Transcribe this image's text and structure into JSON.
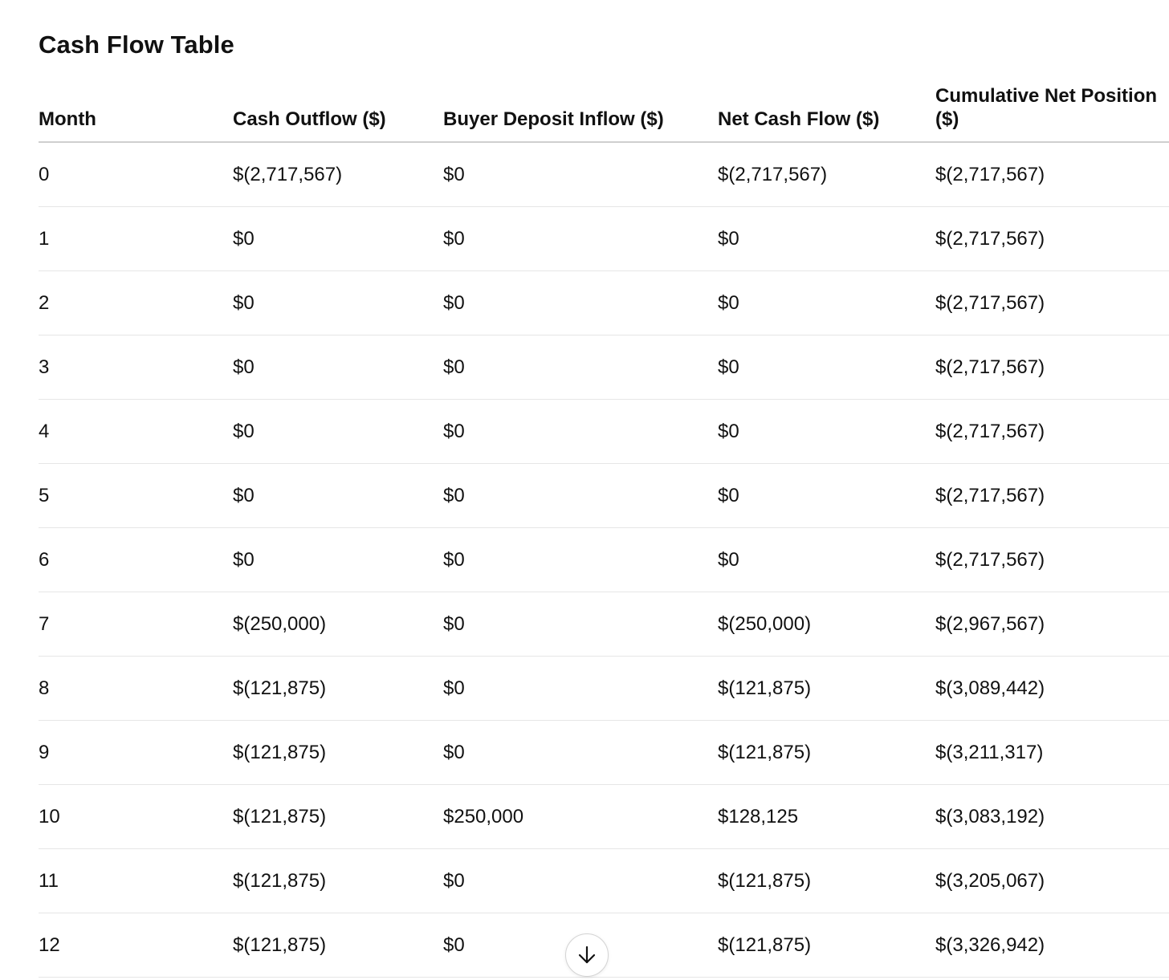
{
  "title": "Cash Flow Table",
  "table": {
    "headers": [
      "Month",
      "Cash Outflow ($)",
      "Buyer Deposit Inflow ($)",
      "Net Cash Flow ($)",
      "Cumulative Net Position ($)"
    ],
    "rows": [
      [
        "0",
        "$(2,717,567)",
        "$0",
        "$(2,717,567)",
        "$(2,717,567)"
      ],
      [
        "1",
        "$0",
        "$0",
        "$0",
        "$(2,717,567)"
      ],
      [
        "2",
        "$0",
        "$0",
        "$0",
        "$(2,717,567)"
      ],
      [
        "3",
        "$0",
        "$0",
        "$0",
        "$(2,717,567)"
      ],
      [
        "4",
        "$0",
        "$0",
        "$0",
        "$(2,717,567)"
      ],
      [
        "5",
        "$0",
        "$0",
        "$0",
        "$(2,717,567)"
      ],
      [
        "6",
        "$0",
        "$0",
        "$0",
        "$(2,717,567)"
      ],
      [
        "7",
        "$(250,000)",
        "$0",
        "$(250,000)",
        "$(2,967,567)"
      ],
      [
        "8",
        "$(121,875)",
        "$0",
        "$(121,875)",
        "$(3,089,442)"
      ],
      [
        "9",
        "$(121,875)",
        "$0",
        "$(121,875)",
        "$(3,211,317)"
      ],
      [
        "10",
        "$(121,875)",
        "$250,000",
        "$128,125",
        "$(3,083,192)"
      ],
      [
        "11",
        "$(121,875)",
        "$0",
        "$(121,875)",
        "$(3,205,067)"
      ],
      [
        "12",
        "$(121,875)",
        "$0",
        "$(121,875)",
        "$(3,326,942)"
      ]
    ]
  },
  "scroll_button": {
    "icon": "arrow-down-icon"
  }
}
